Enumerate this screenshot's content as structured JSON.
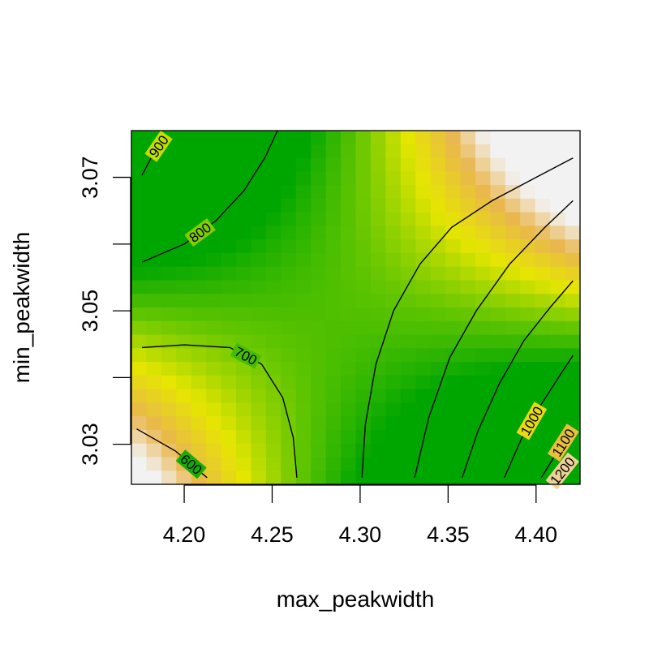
{
  "chart_data": {
    "type": "heatmap",
    "title": "",
    "xlabel": "max_peakwidth",
    "ylabel": "min_peakwidth",
    "xlim": [
      4.17,
      4.425
    ],
    "ylim": [
      3.024,
      3.077
    ],
    "x_ticks": [
      4.2,
      4.25,
      4.3,
      4.35,
      4.4
    ],
    "x_tick_labels": [
      "4.20",
      "4.25",
      "4.30",
      "4.35",
      "4.40"
    ],
    "y_ticks": [
      3.03,
      3.04,
      3.05,
      3.06,
      3.07
    ],
    "y_tick_labels": [
      "3.03",
      "",
      "3.05",
      "",
      "3.07"
    ],
    "color_scale": [
      "#00a600",
      "#63c600",
      "#e6e600",
      "#eab64e",
      "#f2f2f2"
    ],
    "value_range": [
      560,
      1280
    ],
    "surface_model": {
      "center_x": 4.285,
      "center_y": 3.052,
      "intercept": 716,
      "coef_x2": 11.2,
      "coef_y2": -10.4,
      "coef_xy": 12.5,
      "coef_x": 4.2,
      "scale_x": 0.05,
      "scale_y": 0.01
    },
    "contours": [
      {
        "level": 600,
        "label": "600",
        "points": [
          [
            4.173,
            3.0323
          ],
          [
            4.195,
            3.029
          ],
          [
            4.213,
            3.025
          ]
        ]
      },
      {
        "level": 700,
        "label": "700",
        "points": [
          [
            4.176,
            3.0445
          ],
          [
            4.2,
            3.0449
          ],
          [
            4.226,
            3.0445
          ],
          [
            4.244,
            3.042
          ],
          [
            4.256,
            3.037
          ],
          [
            4.262,
            3.031
          ],
          [
            4.264,
            3.025
          ]
        ]
      },
      {
        "level": 700,
        "label": "",
        "points": [
          [
            4.301,
            3.025
          ],
          [
            4.303,
            3.033
          ],
          [
            4.309,
            3.042
          ],
          [
            4.319,
            3.05
          ],
          [
            4.334,
            3.057
          ],
          [
            4.352,
            3.0625
          ],
          [
            4.375,
            3.0665
          ],
          [
            4.4,
            3.07
          ],
          [
            4.421,
            3.0729
          ]
        ]
      },
      {
        "level": 800,
        "label": "800",
        "points": [
          [
            4.176,
            3.0573
          ],
          [
            4.2,
            3.06
          ],
          [
            4.218,
            3.0635
          ],
          [
            4.234,
            3.068
          ],
          [
            4.246,
            3.073
          ],
          [
            4.253,
            3.077
          ]
        ]
      },
      {
        "level": 800,
        "label": "",
        "points": [
          [
            4.331,
            3.025
          ],
          [
            4.339,
            3.034
          ],
          [
            4.351,
            3.043
          ],
          [
            4.366,
            3.05
          ],
          [
            4.385,
            3.057
          ],
          [
            4.405,
            3.0625
          ],
          [
            4.421,
            3.0665
          ]
        ]
      },
      {
        "level": 900,
        "label": "900",
        "points": [
          [
            4.176,
            3.0703
          ],
          [
            4.182,
            3.0733
          ],
          [
            4.189,
            3.076
          ]
        ]
      },
      {
        "level": 900,
        "label": "",
        "points": [
          [
            4.358,
            3.025
          ],
          [
            4.367,
            3.032
          ],
          [
            4.379,
            3.039
          ],
          [
            4.393,
            3.0455
          ],
          [
            4.408,
            3.0505
          ],
          [
            4.421,
            3.0545
          ]
        ]
      },
      {
        "level": 1000,
        "label": "1000",
        "points": [
          [
            4.382,
            3.025
          ],
          [
            4.392,
            3.031
          ],
          [
            4.403,
            3.036
          ],
          [
            4.414,
            3.0405
          ],
          [
            4.421,
            3.0433
          ]
        ]
      },
      {
        "level": 1100,
        "label": "1100",
        "points": [
          [
            4.403,
            3.025
          ],
          [
            4.41,
            3.028
          ],
          [
            4.421,
            3.0325
          ]
        ]
      },
      {
        "level": 1200,
        "label": "1200",
        "points": [
          [
            4.412,
            3.025
          ],
          [
            4.418,
            3.027
          ]
        ]
      }
    ]
  }
}
